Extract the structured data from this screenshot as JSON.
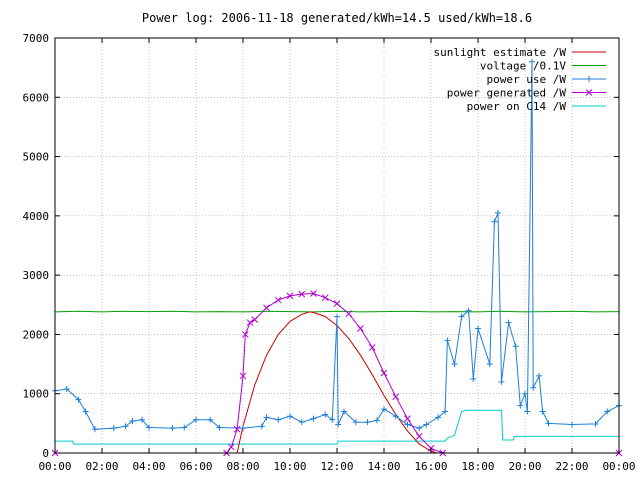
{
  "chart_data": {
    "type": "line",
    "title": "Power log: 2006-11-18 generated/kWh=14.5 used/kWh=18.6",
    "xlabel": "",
    "ylabel": "",
    "xlim": [
      0,
      24
    ],
    "ylim": [
      0,
      7000
    ],
    "grid": true,
    "legend_position": "top-right",
    "x_ticks": [
      "00:00",
      "02:00",
      "04:00",
      "06:00",
      "08:00",
      "10:00",
      "12:00",
      "14:00",
      "16:00",
      "18:00",
      "20:00",
      "22:00",
      "00:00"
    ],
    "y_ticks": [
      "0",
      "1000",
      "2000",
      "3000",
      "4000",
      "5000",
      "6000",
      "7000"
    ],
    "series": [
      {
        "name": "sunlight estimate /W",
        "color": "#cc0000",
        "marker": "none",
        "points": [
          [
            7.75,
            0
          ],
          [
            8.0,
            450
          ],
          [
            8.5,
            1150
          ],
          [
            9.0,
            1650
          ],
          [
            9.5,
            2000
          ],
          [
            10.0,
            2220
          ],
          [
            10.5,
            2340
          ],
          [
            10.83,
            2380
          ],
          [
            11.0,
            2370
          ],
          [
            11.5,
            2300
          ],
          [
            12.0,
            2150
          ],
          [
            12.5,
            1930
          ],
          [
            13.0,
            1650
          ],
          [
            13.5,
            1320
          ],
          [
            14.0,
            970
          ],
          [
            14.5,
            650
          ],
          [
            15.0,
            370
          ],
          [
            15.5,
            150
          ],
          [
            16.0,
            30
          ],
          [
            16.25,
            0
          ]
        ]
      },
      {
        "name": "voltage /0.1V",
        "color": "#00a000",
        "marker": "none",
        "points": [
          [
            0.0,
            2380
          ],
          [
            1.0,
            2390
          ],
          [
            2.0,
            2380
          ],
          [
            3.0,
            2390
          ],
          [
            4.0,
            2385
          ],
          [
            5.0,
            2390
          ],
          [
            6.0,
            2380
          ],
          [
            7.0,
            2385
          ],
          [
            8.0,
            2380
          ],
          [
            9.0,
            2390
          ],
          [
            10.0,
            2385
          ],
          [
            11.0,
            2380
          ],
          [
            12.0,
            2390
          ],
          [
            13.0,
            2380
          ],
          [
            14.0,
            2385
          ],
          [
            15.0,
            2390
          ],
          [
            16.0,
            2380
          ],
          [
            17.0,
            2385
          ],
          [
            18.0,
            2380
          ],
          [
            19.0,
            2390
          ],
          [
            20.0,
            2380
          ],
          [
            21.0,
            2385
          ],
          [
            22.0,
            2390
          ],
          [
            23.0,
            2380
          ],
          [
            24.0,
            2385
          ]
        ]
      },
      {
        "name": "power use /W",
        "color": "#1e7fdc",
        "marker": "plus",
        "points": [
          [
            0.0,
            1050
          ],
          [
            0.5,
            1080
          ],
          [
            1.0,
            900
          ],
          [
            1.3,
            700
          ],
          [
            1.7,
            400
          ],
          [
            2.5,
            420
          ],
          [
            3.0,
            450
          ],
          [
            3.3,
            540
          ],
          [
            3.7,
            560
          ],
          [
            4.0,
            430
          ],
          [
            5.0,
            420
          ],
          [
            5.5,
            430
          ],
          [
            6.0,
            560
          ],
          [
            6.6,
            560
          ],
          [
            7.0,
            430
          ],
          [
            8.0,
            420
          ],
          [
            8.8,
            450
          ],
          [
            9.0,
            600
          ],
          [
            9.5,
            560
          ],
          [
            10.0,
            620
          ],
          [
            10.5,
            520
          ],
          [
            11.0,
            580
          ],
          [
            11.5,
            650
          ],
          [
            11.8,
            560
          ],
          [
            12.0,
            2300
          ],
          [
            12.05,
            480
          ],
          [
            12.3,
            700
          ],
          [
            12.8,
            520
          ],
          [
            13.3,
            520
          ],
          [
            13.7,
            550
          ],
          [
            14.0,
            740
          ],
          [
            14.5,
            620
          ],
          [
            15.0,
            480
          ],
          [
            15.5,
            420
          ],
          [
            15.8,
            480
          ],
          [
            16.3,
            600
          ],
          [
            16.6,
            700
          ],
          [
            16.7,
            1900
          ],
          [
            17.0,
            1500
          ],
          [
            17.3,
            2300
          ],
          [
            17.6,
            2400
          ],
          [
            17.8,
            1250
          ],
          [
            18.0,
            2100
          ],
          [
            18.5,
            1500
          ],
          [
            18.7,
            3900
          ],
          [
            18.85,
            4050
          ],
          [
            19.0,
            1200
          ],
          [
            19.3,
            2200
          ],
          [
            19.6,
            1800
          ],
          [
            19.8,
            800
          ],
          [
            20.0,
            1000
          ],
          [
            20.1,
            700
          ],
          [
            20.3,
            6600
          ],
          [
            20.35,
            1100
          ],
          [
            20.6,
            1300
          ],
          [
            20.75,
            700
          ],
          [
            21.0,
            500
          ],
          [
            22.0,
            480
          ],
          [
            23.0,
            490
          ],
          [
            23.5,
            700
          ],
          [
            24.0,
            800
          ]
        ]
      },
      {
        "name": "power generated /W",
        "color": "#b000d0",
        "marker": "x",
        "points": [
          [
            0.0,
            0
          ],
          [
            7.3,
            0
          ],
          [
            7.5,
            100
          ],
          [
            7.75,
            400
          ],
          [
            8.0,
            1300
          ],
          [
            8.1,
            2000
          ],
          [
            8.3,
            2200
          ],
          [
            8.5,
            2250
          ],
          [
            9.0,
            2450
          ],
          [
            9.5,
            2580
          ],
          [
            10.0,
            2650
          ],
          [
            10.5,
            2680
          ],
          [
            11.0,
            2690
          ],
          [
            11.5,
            2620
          ],
          [
            12.0,
            2520
          ],
          [
            12.5,
            2350
          ],
          [
            13.0,
            2100
          ],
          [
            13.5,
            1780
          ],
          [
            14.0,
            1350
          ],
          [
            14.5,
            950
          ],
          [
            15.0,
            580
          ],
          [
            15.5,
            280
          ],
          [
            16.0,
            80
          ],
          [
            16.5,
            0
          ],
          [
            24.0,
            0
          ]
        ]
      },
      {
        "name": "power on C14 /W",
        "color": "#00cccc",
        "marker": "none",
        "points": [
          [
            0.0,
            200
          ],
          [
            0.75,
            200
          ],
          [
            0.8,
            150
          ],
          [
            12.0,
            150
          ],
          [
            12.05,
            200
          ],
          [
            16.6,
            200
          ],
          [
            16.7,
            250
          ],
          [
            17.0,
            300
          ],
          [
            17.3,
            700
          ],
          [
            17.5,
            720
          ],
          [
            19.0,
            720
          ],
          [
            19.05,
            220
          ],
          [
            19.5,
            220
          ],
          [
            19.55,
            280
          ],
          [
            24.0,
            280
          ]
        ]
      }
    ]
  }
}
